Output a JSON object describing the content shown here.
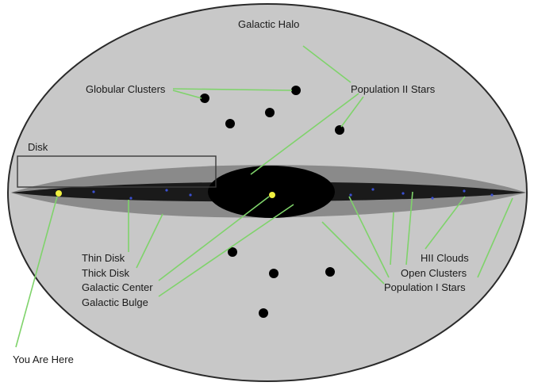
{
  "colors": {
    "halo": "#c8c8c8",
    "halo_edge": "#2a2a2a",
    "thick_disk": "#8a8a8a",
    "thin_disk": "#1a1a1a",
    "bulge": "#000000",
    "leader_line": "#7fd36b",
    "sun": "#f0f040",
    "open_cluster": "#3a4fd0"
  },
  "labels": {
    "halo": "Galactic Halo",
    "globular_clusters": "Globular Clusters",
    "population_ii": "Population II Stars",
    "disk": "Disk",
    "thin_disk": "Thin Disk",
    "thick_disk": "Thick Disk",
    "galactic_center": "Galactic Center",
    "galactic_bulge": "Galactic Bulge",
    "hii_clouds": "HII Clouds",
    "open_clusters": "Open Clusters",
    "population_i": "Population I Stars",
    "you_are_here": "You Are Here"
  }
}
